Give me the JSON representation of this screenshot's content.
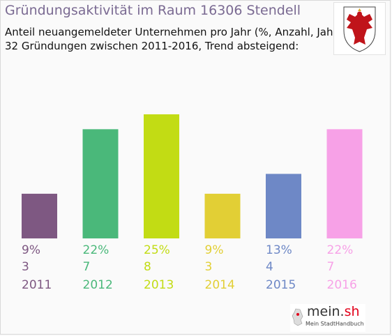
{
  "header": {
    "title": "Gründungsaktivität im Raum 16306 Stendell",
    "subtitle_line1": "Anteil neuangemeldeter Unternehmen pro Jahr (%, Anzahl, Jahr)",
    "subtitle_line2": "32 Gründungen zwischen 2011-2016, Trend absteigend:"
  },
  "chart_data": {
    "type": "bar",
    "categories": [
      "2011",
      "2012",
      "2013",
      "2014",
      "2015",
      "2016"
    ],
    "values": [
      9,
      22,
      25,
      9,
      13,
      22
    ],
    "counts": [
      3,
      7,
      8,
      3,
      4,
      7
    ],
    "percent_labels": [
      "9%",
      "22%",
      "25%",
      "9%",
      "13%",
      "22%"
    ],
    "colors": [
      "#7e5882",
      "#4ab87a",
      "#c2dc14",
      "#e2cf35",
      "#6e88c6",
      "#f7a1e7"
    ],
    "ylim": [
      0,
      25
    ],
    "grid": false,
    "legend": "none"
  },
  "footer": {
    "logo_text_main": "mein.",
    "logo_text_accent": "sh",
    "logo_sub": "Mein StadtHandbuch"
  }
}
